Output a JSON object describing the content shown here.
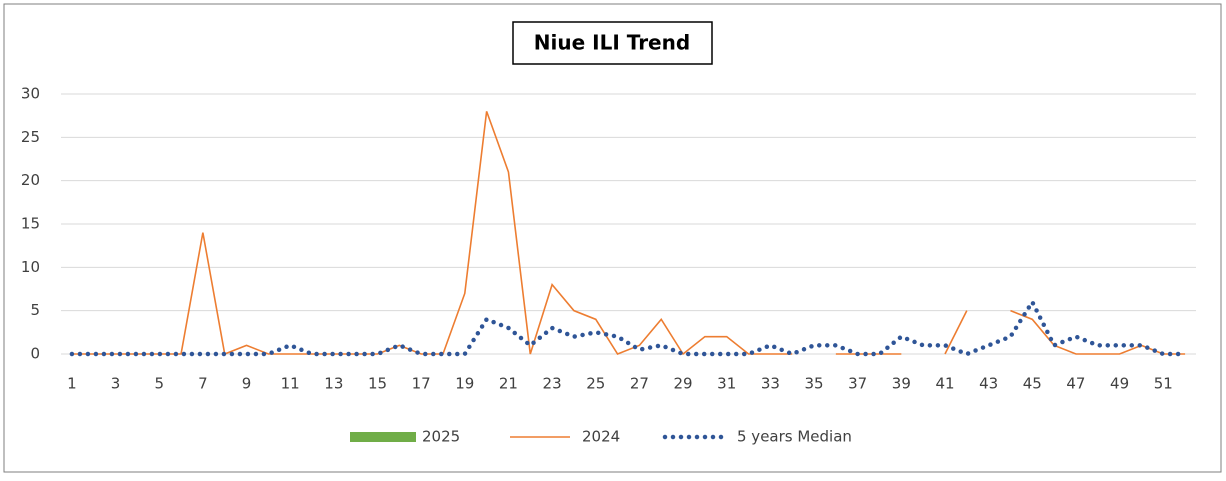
{
  "chart_data": {
    "type": "line",
    "title": "Niue ILI Trend",
    "categories": [
      1,
      null,
      3,
      null,
      5,
      null,
      7,
      null,
      9,
      null,
      11,
      null,
      13,
      null,
      15,
      null,
      17,
      null,
      19,
      null,
      21,
      null,
      23,
      null,
      25,
      null,
      27,
      null,
      29,
      null,
      31,
      null,
      33,
      null,
      35,
      null,
      37,
      null,
      39,
      null,
      41,
      null,
      43,
      null,
      45,
      null,
      47,
      null,
      49,
      null,
      51,
      null
    ],
    "series": [
      {
        "name": "2025",
        "color": "#70ad47",
        "style": "bar",
        "values": [
          null,
          null,
          null,
          null,
          null,
          null,
          null,
          null,
          null,
          null,
          null,
          null,
          null,
          null,
          null,
          null,
          null,
          null,
          null,
          null,
          null,
          null,
          null,
          null,
          null,
          null,
          null,
          null,
          null,
          null,
          null,
          null,
          null,
          null,
          null,
          null,
          null,
          null,
          null,
          null,
          null,
          null,
          null,
          null,
          null,
          null,
          null,
          null,
          null,
          null,
          null,
          null
        ]
      },
      {
        "name": "2024",
        "color": "#ed7d31",
        "style": "solid",
        "values": [
          0,
          0,
          0,
          0,
          0,
          0,
          14,
          0,
          1,
          0,
          0,
          0,
          0,
          0,
          0,
          1,
          0,
          0,
          7,
          28,
          21,
          0,
          8,
          5,
          4,
          0,
          1,
          4,
          0,
          2,
          2,
          0,
          0,
          0,
          null,
          0,
          0,
          0,
          0,
          null,
          0,
          5,
          null,
          5,
          4,
          1,
          0,
          0,
          0,
          1,
          0,
          0
        ]
      },
      {
        "name": "5 years Median",
        "color": "#2f5597",
        "style": "dotted",
        "values": [
          0,
          0,
          0,
          0,
          0,
          0,
          0,
          0,
          0,
          0,
          1,
          0,
          0,
          0,
          0,
          1,
          0,
          0,
          0,
          4,
          3,
          1,
          3,
          2,
          2.5,
          2,
          0.5,
          1,
          0,
          0,
          0,
          0,
          1,
          0,
          1,
          1,
          0,
          0,
          2,
          1,
          1,
          0,
          1,
          2,
          6,
          1,
          2,
          1,
          1,
          1,
          0,
          0
        ]
      }
    ],
    "ylim": [
      0,
      30
    ],
    "yticks": [
      0,
      5,
      10,
      15,
      20,
      25,
      30
    ],
    "grid": true
  }
}
